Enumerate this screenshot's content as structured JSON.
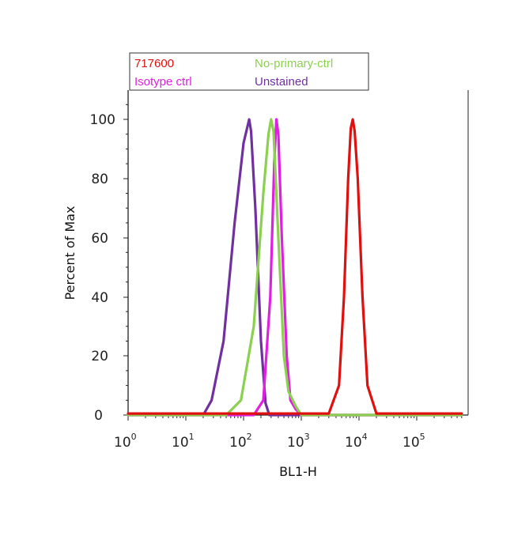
{
  "chart_data": {
    "type": "line",
    "title": "",
    "xlabel": "BL1-H",
    "ylabel": "Percent of Max",
    "xscale": "log",
    "xlim": [
      1,
      600000
    ],
    "ylim": [
      0,
      110
    ],
    "grid": false,
    "legend_placement": "top (above plot, boxed)",
    "x_ticks": [
      {
        "base": "10",
        "exp": "0"
      },
      {
        "base": "10",
        "exp": "1"
      },
      {
        "base": "10",
        "exp": "2"
      },
      {
        "base": "10",
        "exp": "3"
      },
      {
        "base": "10",
        "exp": "4"
      },
      {
        "base": "10",
        "exp": "5"
      }
    ],
    "y_ticks": [
      "0",
      "20",
      "40",
      "60",
      "80",
      "100"
    ],
    "series": [
      {
        "name": "717600",
        "color": "#e01010",
        "x": [
          1,
          3000,
          4500,
          5500,
          6500,
          7200,
          7800,
          8400,
          9500,
          11500,
          14000,
          20000,
          600000
        ],
        "y": [
          0.5,
          0.5,
          10,
          40,
          80,
          97,
          100,
          96,
          80,
          40,
          10,
          0.5,
          0.5
        ]
      },
      {
        "name": "No-primary-ctrl",
        "color": "#8cd050",
        "x": [
          1,
          50,
          90,
          150,
          220,
          270,
          300,
          330,
          400,
          500,
          600,
          800,
          1000,
          600000
        ],
        "y": [
          0,
          0,
          5,
          30,
          75,
          95,
          100,
          96,
          60,
          20,
          8,
          3,
          0,
          0
        ]
      },
      {
        "name": "Isotype ctrl",
        "color": "#e020e0",
        "x": [
          1,
          150,
          220,
          290,
          340,
          370,
          400,
          460,
          560,
          650,
          800,
          1000,
          600000
        ],
        "y": [
          0,
          0,
          5,
          40,
          85,
          100,
          95,
          60,
          20,
          5,
          2,
          0,
          0
        ]
      },
      {
        "name": "Unstained",
        "color": "#7030a0",
        "x": [
          1,
          20,
          28,
          45,
          70,
          100,
          125,
          135,
          160,
          200,
          240,
          280,
          600000
        ],
        "y": [
          0,
          0,
          5,
          25,
          65,
          92,
          100,
          96,
          70,
          25,
          4,
          0,
          0
        ]
      }
    ]
  }
}
